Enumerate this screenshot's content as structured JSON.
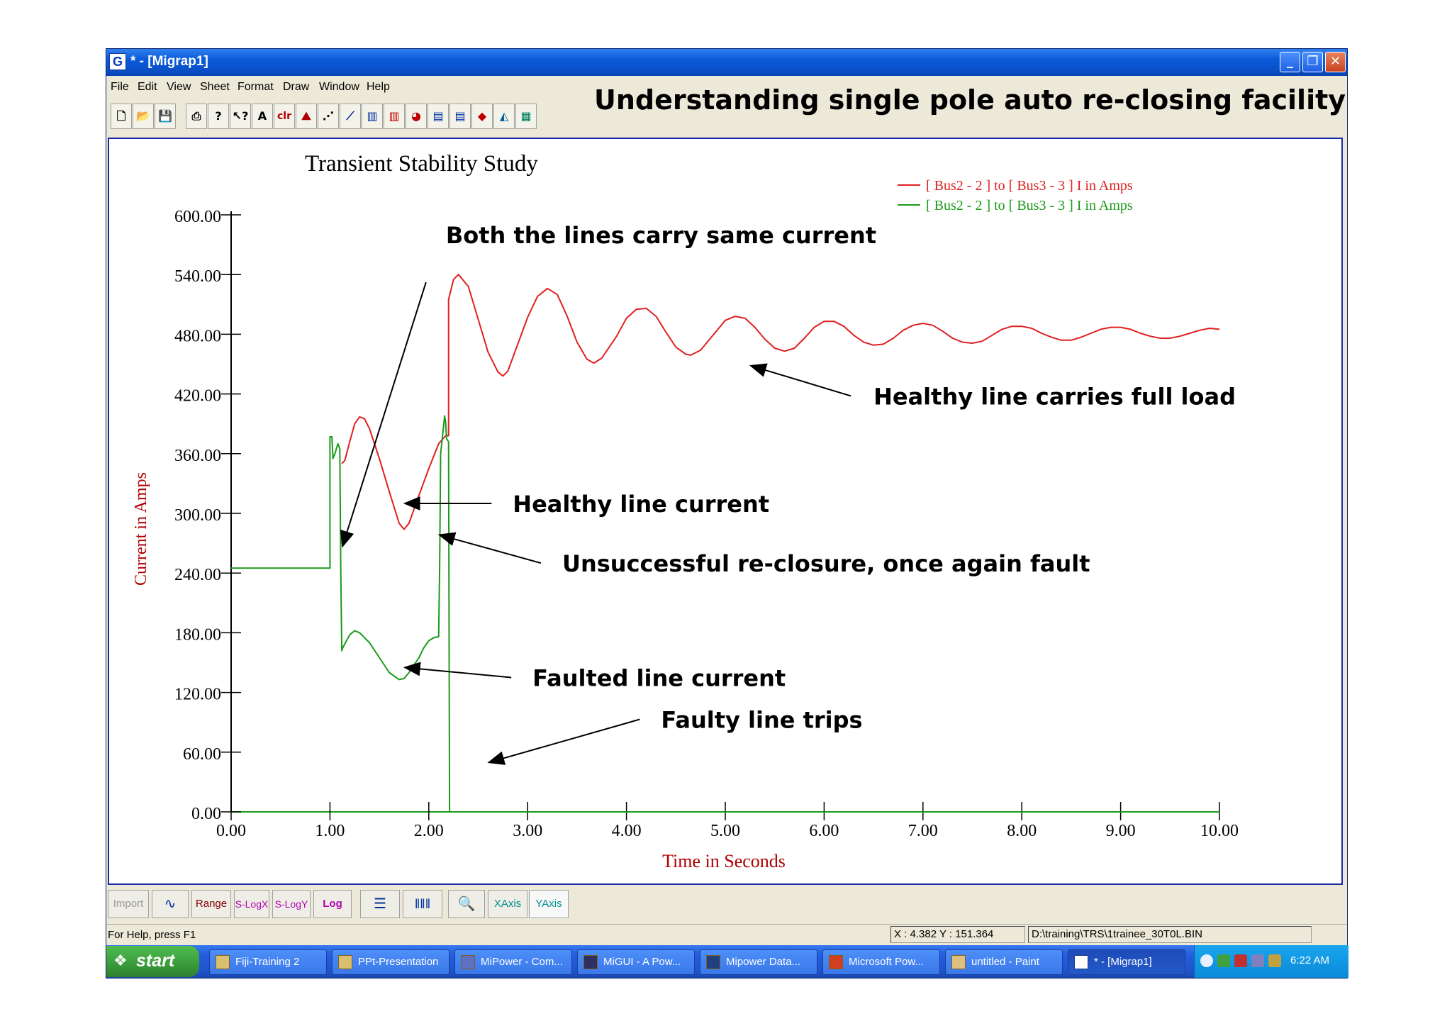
{
  "window": {
    "title": "* - [Migrap1]",
    "icon": "app-g-icon",
    "min_icon": "minimize-icon",
    "max_icon": "restore-icon",
    "close_icon": "close-icon"
  },
  "menu": [
    "File",
    "Edit",
    "View",
    "Sheet",
    "Format",
    "Draw",
    "Window",
    "Help"
  ],
  "toolbar_icons": [
    "new-file-icon",
    "open-folder-icon",
    "save-icon",
    "print-icon",
    "help-icon",
    "context-help-icon",
    "text-icon",
    "clear-icon",
    "line-chart-icon",
    "scatter-icon",
    "multi-line-icon",
    "bar-chart-icon",
    "bar-chart-2-icon",
    "pie-icon",
    "stacked-bar-icon",
    "stacked-bar-2-icon",
    "diamond-icon",
    "area-chart-icon",
    "export-icon"
  ],
  "toolbar_labels": {
    "text": "A",
    "clear": "clr"
  },
  "slide_heading": "Understanding single pole auto re-closing facility",
  "chart_data": {
    "type": "line",
    "title": "Transient Stability Study",
    "xlabel": "Time in Seconds",
    "ylabel": "Current in Amps",
    "xlim": [
      0,
      10
    ],
    "ylim": [
      0,
      600
    ],
    "xticks": [
      "0.00",
      "1.00",
      "2.00",
      "3.00",
      "4.00",
      "5.00",
      "6.00",
      "7.00",
      "8.00",
      "9.00",
      "10.00"
    ],
    "yticks": [
      "0.00",
      "60.00",
      "120.00",
      "180.00",
      "240.00",
      "300.00",
      "360.00",
      "420.00",
      "480.00",
      "540.00",
      "600.00"
    ],
    "legend_position": "top-right",
    "series": [
      {
        "name": "[ Bus2 - 2 ] to [ Bus3 - 3 ] I in Amps",
        "color": "#e02020",
        "points": [
          [
            1.12,
            350
          ],
          [
            1.15,
            353
          ],
          [
            1.2,
            372
          ],
          [
            1.25,
            390
          ],
          [
            1.3,
            397
          ],
          [
            1.35,
            395
          ],
          [
            1.4,
            385
          ],
          [
            1.5,
            355
          ],
          [
            1.6,
            322
          ],
          [
            1.7,
            290
          ],
          [
            1.75,
            284
          ],
          [
            1.8,
            290
          ],
          [
            1.9,
            318
          ],
          [
            2.0,
            345
          ],
          [
            2.1,
            370
          ],
          [
            2.17,
            378
          ],
          [
            2.2,
            378
          ],
          [
            2.2,
            515
          ],
          [
            2.25,
            535
          ],
          [
            2.3,
            540
          ],
          [
            2.4,
            528
          ],
          [
            2.5,
            495
          ],
          [
            2.6,
            462
          ],
          [
            2.7,
            442
          ],
          [
            2.75,
            438
          ],
          [
            2.8,
            443
          ],
          [
            2.9,
            470
          ],
          [
            3.0,
            497
          ],
          [
            3.1,
            518
          ],
          [
            3.2,
            526
          ],
          [
            3.3,
            520
          ],
          [
            3.4,
            498
          ],
          [
            3.5,
            472
          ],
          [
            3.6,
            455
          ],
          [
            3.67,
            451
          ],
          [
            3.75,
            456
          ],
          [
            3.9,
            478
          ],
          [
            4.0,
            496
          ],
          [
            4.1,
            505
          ],
          [
            4.2,
            506
          ],
          [
            4.3,
            498
          ],
          [
            4.4,
            482
          ],
          [
            4.5,
            467
          ],
          [
            4.6,
            460
          ],
          [
            4.65,
            459
          ],
          [
            4.75,
            464
          ],
          [
            4.9,
            482
          ],
          [
            5.0,
            494
          ],
          [
            5.1,
            498
          ],
          [
            5.2,
            496
          ],
          [
            5.3,
            487
          ],
          [
            5.4,
            475
          ],
          [
            5.5,
            466
          ],
          [
            5.6,
            463
          ],
          [
            5.7,
            466
          ],
          [
            5.8,
            476
          ],
          [
            5.9,
            487
          ],
          [
            6.0,
            493
          ],
          [
            6.1,
            493
          ],
          [
            6.2,
            488
          ],
          [
            6.3,
            479
          ],
          [
            6.4,
            472
          ],
          [
            6.5,
            469
          ],
          [
            6.6,
            470
          ],
          [
            6.7,
            476
          ],
          [
            6.8,
            484
          ],
          [
            6.9,
            489
          ],
          [
            7.0,
            491
          ],
          [
            7.1,
            489
          ],
          [
            7.2,
            483
          ],
          [
            7.3,
            476
          ],
          [
            7.4,
            472
          ],
          [
            7.5,
            471
          ],
          [
            7.6,
            473
          ],
          [
            7.7,
            479
          ],
          [
            7.8,
            485
          ],
          [
            7.9,
            488
          ],
          [
            8.0,
            488
          ],
          [
            8.1,
            486
          ],
          [
            8.2,
            481
          ],
          [
            8.3,
            477
          ],
          [
            8.4,
            474
          ],
          [
            8.5,
            474
          ],
          [
            8.6,
            477
          ],
          [
            8.7,
            481
          ],
          [
            8.8,
            485
          ],
          [
            8.9,
            487
          ],
          [
            9.0,
            487
          ],
          [
            9.1,
            485
          ],
          [
            9.2,
            481
          ],
          [
            9.3,
            478
          ],
          [
            9.4,
            476
          ],
          [
            9.5,
            476
          ],
          [
            9.6,
            478
          ],
          [
            9.7,
            481
          ],
          [
            9.8,
            484
          ],
          [
            9.9,
            486
          ],
          [
            10.0,
            485
          ]
        ]
      },
      {
        "name": "[ Bus2 - 2 ] to [ Bus3 - 3 ] I in Amps",
        "color": "#1a9a1a",
        "points": [
          [
            0,
            245
          ],
          [
            1.0,
            245
          ],
          [
            1.0,
            377
          ],
          [
            1.02,
            377
          ],
          [
            1.03,
            355
          ],
          [
            1.05,
            360
          ],
          [
            1.08,
            370
          ],
          [
            1.1,
            365
          ],
          [
            1.11,
            240
          ],
          [
            1.12,
            162
          ],
          [
            1.13,
            165
          ],
          [
            1.2,
            178
          ],
          [
            1.25,
            182
          ],
          [
            1.3,
            180
          ],
          [
            1.4,
            170
          ],
          [
            1.5,
            155
          ],
          [
            1.6,
            140
          ],
          [
            1.7,
            133
          ],
          [
            1.75,
            134
          ],
          [
            1.8,
            140
          ],
          [
            1.9,
            155
          ],
          [
            1.95,
            165
          ],
          [
            2.0,
            172
          ],
          [
            2.05,
            175
          ],
          [
            2.1,
            176
          ],
          [
            2.11,
            245
          ],
          [
            2.12,
            360
          ],
          [
            2.15,
            388
          ],
          [
            2.16,
            398
          ],
          [
            2.17,
            392
          ],
          [
            2.18,
            375
          ],
          [
            2.2,
            372
          ],
          [
            2.21,
            0
          ],
          [
            10.0,
            0
          ]
        ]
      }
    ]
  },
  "annotations": [
    {
      "text": "Both the lines carry same current",
      "tx": 1.9,
      "ty": 580,
      "ax": 1.13,
      "ay": 268
    },
    {
      "text": "Healthy line carries full load",
      "tx": 6.5,
      "ty": 418,
      "ax": 5.27,
      "ay": 448
    },
    {
      "text": "Healthy line current",
      "tx": 2.85,
      "ty": 310,
      "ax": 1.77,
      "ay": 310
    },
    {
      "text": "Unsuccessful re-closure, once again fault",
      "tx": 3.35,
      "ty": 250,
      "ax": 2.12,
      "ay": 278
    },
    {
      "text": "Faulted line current",
      "tx": 3.05,
      "ty": 135,
      "ax": 1.77,
      "ay": 145
    },
    {
      "text": "Faulty line trips",
      "tx": 4.35,
      "ty": 93,
      "ax": 2.62,
      "ay": 50
    }
  ],
  "bottom_toolbar": [
    "Import",
    "wave-icon",
    "Range",
    "S-LogX",
    "S-LogY",
    "Log",
    "hgrid-icon",
    "vgrid-icon",
    "zoom-icon",
    "XAxis",
    "YAxis"
  ],
  "status": {
    "help": "For Help, press F1",
    "coords": "X :  4.382   Y : 151.364",
    "file": "D:\\training\\TRS\\1trainee_30T0L.BIN"
  },
  "taskbar": {
    "start": "start",
    "tasks": [
      "Fiji-Training 2",
      "PPt-Presentation",
      "MiPower - Com...",
      "MiGUI - A Pow...",
      "Mipower Data...",
      "Microsoft Pow...",
      "untitled - Paint",
      "* - [Migrap1]"
    ],
    "clock": "6:22 AM"
  }
}
